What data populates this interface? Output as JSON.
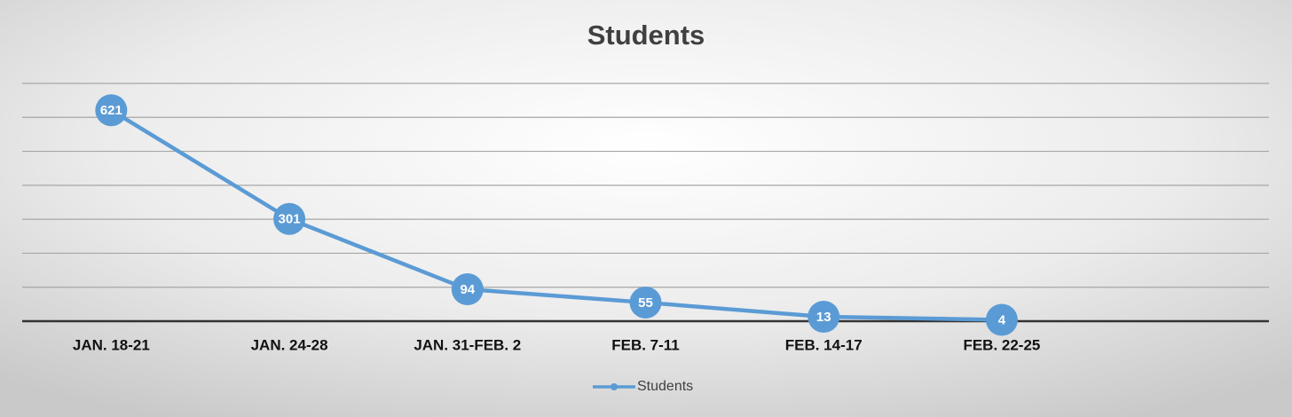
{
  "chart_data": {
    "type": "line",
    "title": "Students",
    "categories": [
      "JAN. 18-21",
      "JAN. 24-28",
      "JAN. 31-FEB. 2",
      "FEB. 7-11",
      "FEB. 14-17",
      "FEB. 22-25",
      null
    ],
    "series": [
      {
        "name": "Students",
        "color": "#5b9bd5",
        "values": [
          621,
          301,
          94,
          55,
          13,
          4,
          null
        ]
      }
    ],
    "ylim": [
      0,
      700
    ],
    "yticks": [
      0,
      100,
      200,
      300,
      400,
      500,
      600,
      700
    ],
    "grid": true,
    "legend": "bottom"
  }
}
